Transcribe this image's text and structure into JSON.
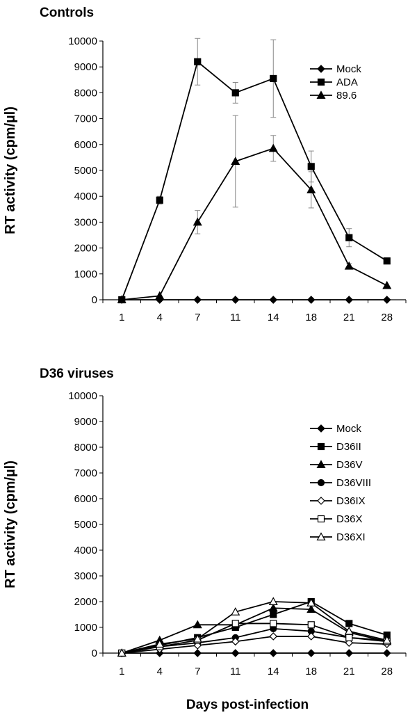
{
  "chart_data": [
    {
      "type": "line",
      "title": "Controls",
      "xlabel": "",
      "ylabel": "RT activity (cpm/µl)",
      "categories": [
        "1",
        "4",
        "7",
        "11",
        "14",
        "18",
        "21",
        "28"
      ],
      "ylim": [
        0,
        10000
      ],
      "yticks": [
        0,
        1000,
        2000,
        3000,
        4000,
        5000,
        6000,
        7000,
        8000,
        9000,
        10000
      ],
      "legend_position": "top-right",
      "grid": false,
      "series": [
        {
          "name": "Mock",
          "marker": "diamond",
          "filled": true,
          "values": [
            0,
            0,
            0,
            0,
            0,
            0,
            0,
            0
          ],
          "errors": [
            0,
            0,
            0,
            0,
            0,
            0,
            0,
            0
          ]
        },
        {
          "name": "ADA",
          "marker": "square",
          "filled": true,
          "values": [
            0,
            3850,
            9200,
            8000,
            8550,
            5150,
            2400,
            1500
          ],
          "errors": [
            0,
            150,
            900,
            400,
            1500,
            600,
            350,
            0
          ]
        },
        {
          "name": "89.6",
          "marker": "triangle",
          "filled": true,
          "values": [
            0,
            150,
            3000,
            5350,
            5850,
            4250,
            1300,
            550
          ],
          "errors": [
            0,
            0,
            450,
            1770,
            500,
            700,
            100,
            0
          ]
        }
      ]
    },
    {
      "type": "line",
      "title": "D36 viruses",
      "xlabel": "Days post-infection",
      "ylabel": "RT activity (cpm/µl)",
      "categories": [
        "1",
        "4",
        "7",
        "11",
        "14",
        "18",
        "21",
        "28"
      ],
      "ylim": [
        0,
        10000
      ],
      "yticks": [
        0,
        1000,
        2000,
        3000,
        4000,
        5000,
        6000,
        7000,
        8000,
        9000,
        10000
      ],
      "legend_position": "right",
      "grid": false,
      "series": [
        {
          "name": "Mock",
          "marker": "diamond",
          "filled": true,
          "values": [
            0,
            0,
            0,
            0,
            0,
            0,
            0,
            0
          ]
        },
        {
          "name": "D36II",
          "marker": "square",
          "filled": true,
          "values": [
            0,
            300,
            600,
            1000,
            1500,
            2000,
            1150,
            700
          ]
        },
        {
          "name": "D36V",
          "marker": "triangle",
          "filled": true,
          "values": [
            0,
            500,
            1100,
            1100,
            1750,
            1700,
            800,
            450
          ]
        },
        {
          "name": "D36VIII",
          "marker": "circle",
          "filled": true,
          "values": [
            0,
            250,
            400,
            600,
            950,
            850,
            600,
            500
          ]
        },
        {
          "name": "D36IX",
          "marker": "diamond",
          "filled": false,
          "values": [
            0,
            150,
            300,
            450,
            650,
            650,
            400,
            350
          ]
        },
        {
          "name": "D36X",
          "marker": "square",
          "filled": false,
          "values": [
            0,
            250,
            500,
            1150,
            1150,
            1100,
            600,
            450
          ]
        },
        {
          "name": "D36XI",
          "marker": "triangle",
          "filled": false,
          "values": [
            0,
            350,
            550,
            1600,
            2000,
            1950,
            850,
            500
          ]
        }
      ]
    }
  ]
}
